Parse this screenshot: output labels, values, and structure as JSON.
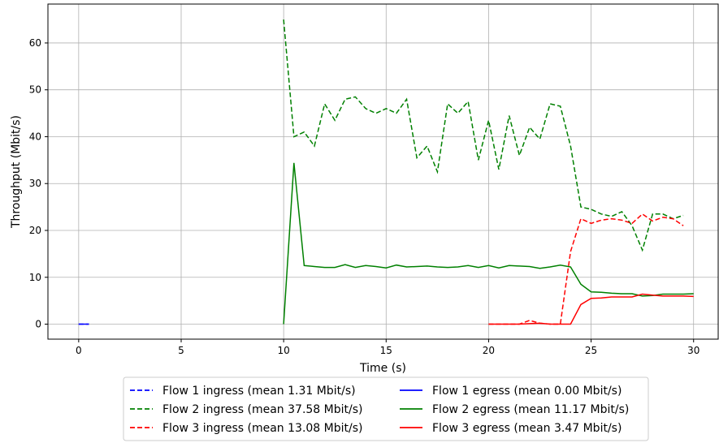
{
  "chart_data": {
    "type": "line",
    "xlabel": "Time (s)",
    "ylabel": "Throughput (Mbit/s)",
    "xlim": [
      -1.5,
      31.2
    ],
    "ylim": [
      -3.2,
      68.3
    ],
    "xticks": [
      0,
      5,
      10,
      15,
      20,
      25,
      30
    ],
    "yticks": [
      0,
      10,
      20,
      30,
      40,
      50,
      60
    ],
    "grid": true,
    "legend_placement": "below-center",
    "series": [
      {
        "name": "Flow 1 ingress (mean 1.31 Mbit/s)",
        "color": "#0000ff",
        "dash": "dashed",
        "x": [
          0,
          0.5
        ],
        "y": [
          0,
          0
        ]
      },
      {
        "name": "Flow 1 egress (mean 0.00 Mbit/s)",
        "color": "#0000ff",
        "dash": "solid",
        "x": [
          0,
          0.5
        ],
        "y": [
          0,
          0
        ]
      },
      {
        "name": "Flow 2 ingress (mean 37.58 Mbit/s)",
        "color": "#008000",
        "dash": "dashed",
        "x": [
          10.0,
          10.5,
          11.0,
          11.5,
          12.0,
          12.5,
          13.0,
          13.5,
          14.0,
          14.5,
          15.0,
          15.5,
          16.0,
          16.5,
          17.0,
          17.5,
          18.0,
          18.5,
          19.0,
          19.5,
          20.0,
          20.5,
          21.0,
          21.5,
          22.0,
          22.5,
          23.0,
          23.5,
          24.0,
          24.5,
          25.0,
          25.5,
          26.0,
          26.5,
          27.0,
          27.5,
          28.0,
          28.5,
          29.0,
          29.5
        ],
        "y": [
          65.0,
          40.0,
          41.0,
          38.0,
          47.0,
          43.5,
          48.0,
          48.5,
          46.0,
          45.0,
          46.0,
          45.0,
          48.0,
          35.5,
          38.0,
          32.5,
          47.0,
          45.0,
          47.5,
          35.0,
          43.5,
          33.0,
          44.5,
          36.0,
          42.0,
          39.5,
          47.0,
          46.5,
          38.0,
          25.0,
          24.5,
          23.5,
          23.0,
          24.0,
          21.0,
          15.8,
          23.5,
          23.5,
          22.5,
          23.2
        ]
      },
      {
        "name": "Flow 2 egress (mean 11.17 Mbit/s)",
        "color": "#008000",
        "dash": "solid",
        "x": [
          10.0,
          10.5,
          11.0,
          11.5,
          12.0,
          12.5,
          13.0,
          13.5,
          14.0,
          14.5,
          15.0,
          15.5,
          16.0,
          16.5,
          17.0,
          17.5,
          18.0,
          18.5,
          19.0,
          19.5,
          20.0,
          20.5,
          21.0,
          21.5,
          22.0,
          22.5,
          23.0,
          23.5,
          24.0,
          24.5,
          25.0,
          25.5,
          26.0,
          26.5,
          27.0,
          27.5,
          28.0,
          28.5,
          29.0,
          29.5,
          30.0
        ],
        "y": [
          0.0,
          34.4,
          12.5,
          12.3,
          12.1,
          12.1,
          12.7,
          12.1,
          12.5,
          12.3,
          12.0,
          12.6,
          12.2,
          12.3,
          12.4,
          12.2,
          12.1,
          12.2,
          12.5,
          12.1,
          12.5,
          12.0,
          12.5,
          12.4,
          12.3,
          11.9,
          12.2,
          12.6,
          12.2,
          8.5,
          6.9,
          6.8,
          6.6,
          6.5,
          6.5,
          6.0,
          6.1,
          6.4,
          6.4,
          6.4,
          6.5
        ]
      },
      {
        "name": "Flow 3 ingress (mean 13.08 Mbit/s)",
        "color": "#ff0000",
        "dash": "dashed",
        "x": [
          20.0,
          20.5,
          21.0,
          21.5,
          22.0,
          22.5,
          23.0,
          23.5,
          24.0,
          24.5,
          25.0,
          25.5,
          26.0,
          26.5,
          27.0,
          27.5,
          28.0,
          28.5,
          29.0,
          29.5
        ],
        "y": [
          0.0,
          0.0,
          0.0,
          0.0,
          0.8,
          0.2,
          0.0,
          0.0,
          15.5,
          22.5,
          21.5,
          22.2,
          22.5,
          22.2,
          21.5,
          23.5,
          22.0,
          22.8,
          22.5,
          21.0
        ]
      },
      {
        "name": "Flow 3 egress (mean 3.47 Mbit/s)",
        "color": "#ff0000",
        "dash": "solid",
        "x": [
          20.0,
          20.5,
          21.0,
          21.5,
          22.0,
          22.5,
          23.0,
          23.5,
          24.0,
          24.5,
          25.0,
          25.5,
          26.0,
          26.5,
          27.0,
          27.5,
          28.0,
          28.5,
          29.0,
          29.5,
          30.0
        ],
        "y": [
          0.0,
          0.0,
          0.0,
          0.0,
          0.1,
          0.2,
          0.0,
          0.0,
          0.0,
          4.2,
          5.5,
          5.6,
          5.8,
          5.8,
          5.8,
          6.4,
          6.2,
          6.0,
          6.0,
          6.0,
          5.9
        ]
      }
    ]
  }
}
